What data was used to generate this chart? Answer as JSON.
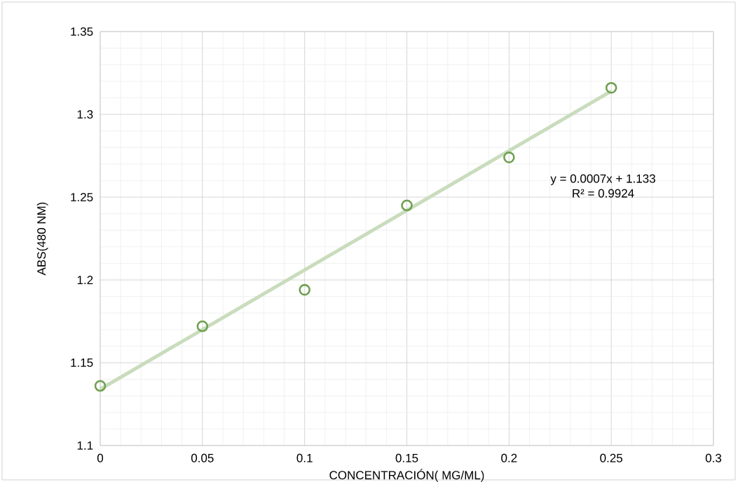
{
  "chart_data": {
    "type": "scatter",
    "xlabel": "CONCENTRACIÓN( MG/ML)",
    "ylabel": "ABS(480 NM)",
    "x": [
      0,
      0.05,
      0.1,
      0.15,
      0.2,
      0.25
    ],
    "series": [
      {
        "color": "#70a050",
        "values": [
          1.136,
          1.172,
          1.194,
          1.245,
          1.274,
          1.316
        ],
        "marker": "circle"
      },
      {
        "type": "line",
        "color": "#c9dcbd",
        "x": [
          0,
          0.25
        ],
        "values": [
          1.134,
          1.314
        ],
        "marker": "none",
        "line_style": "solid"
      }
    ],
    "xlim": [
      0,
      0.3
    ],
    "ylim": [
      1.1,
      1.35
    ],
    "xticks": [
      0,
      0.05,
      0.1,
      0.15,
      0.2,
      0.25,
      0.3
    ],
    "yticks": [
      1.1,
      1.15,
      1.2,
      1.25,
      1.3,
      1.35
    ],
    "grid": true,
    "annotations": [
      "y = 0.0007x + 1.133",
      "R² = 0.9924"
    ]
  }
}
